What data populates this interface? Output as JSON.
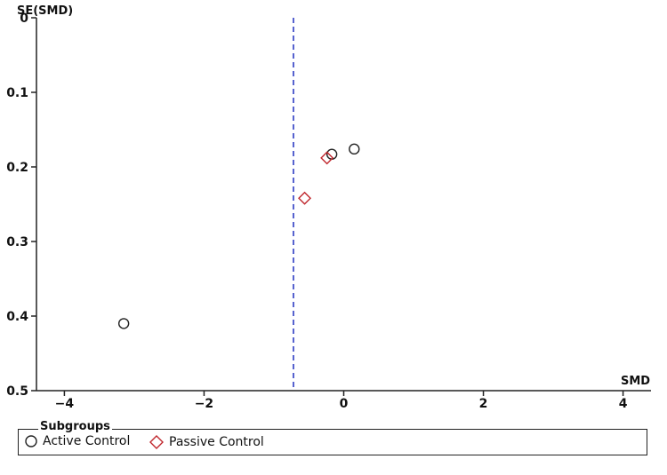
{
  "chart_data": {
    "type": "scatter",
    "title": "",
    "xlabel": "SMD",
    "ylabel": "SE(SMD)",
    "xlim": [
      -4.4,
      4.4
    ],
    "ylim": [
      0,
      0.5
    ],
    "y_inverted": true,
    "x_ticks": [
      -4,
      -2,
      0,
      2,
      4
    ],
    "x_tick_labels": [
      "-4",
      "-2",
      "0",
      "2",
      "4"
    ],
    "y_ticks": [
      0,
      0.1,
      0.2,
      0.3,
      0.4,
      0.5
    ],
    "y_tick_labels": [
      "0",
      "0.1",
      "0.2",
      "0.3",
      "0.4",
      "0.5"
    ],
    "reference_line": {
      "x": -0.72,
      "style": "dashed",
      "color": "#1f2fbf"
    },
    "series": [
      {
        "name": "Active Control",
        "marker": "circle",
        "color": "#222222",
        "points": [
          {
            "x": -3.15,
            "y": 0.41
          },
          {
            "x": -0.17,
            "y": 0.183
          },
          {
            "x": 0.15,
            "y": 0.176
          }
        ]
      },
      {
        "name": "Passive Control",
        "marker": "diamond",
        "color": "#c0272d",
        "points": [
          {
            "x": -0.24,
            "y": 0.188
          },
          {
            "x": -0.56,
            "y": 0.242
          }
        ]
      }
    ],
    "legend": {
      "title": "Subgroups",
      "placement": "bottom"
    }
  }
}
